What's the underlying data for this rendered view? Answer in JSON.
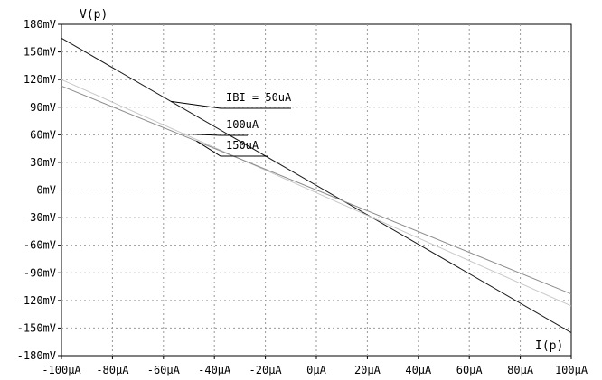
{
  "chart_data": {
    "type": "line",
    "ylabel": "V(p)",
    "xlabel": "I(p)",
    "xlim": [
      -100,
      100
    ],
    "ylim": [
      -180,
      180
    ],
    "x_unit": "µA",
    "y_unit": "mV",
    "xticks": [
      "-100µA",
      "-80µA",
      "-60µA",
      "-40µA",
      "-20µA",
      "0µA",
      "20µA",
      "40µA",
      "60µA",
      "80µA",
      "100µA"
    ],
    "yticks": [
      "180mV",
      "150mV",
      "120mV",
      "90mV",
      "60mV",
      "30mV",
      "0mV",
      "-30mV",
      "-60mV",
      "-90mV",
      "-120mV",
      "-150mV",
      "-180mV"
    ],
    "grid": true,
    "series": [
      {
        "name": "IBI = 50uA",
        "color": "#1a1a1a",
        "x": [
          -100,
          100
        ],
        "y": [
          165,
          -155
        ]
      },
      {
        "name": "100uA",
        "color": "#c8c8c8",
        "x": [
          -100,
          100
        ],
        "y": [
          120,
          -126
        ]
      },
      {
        "name": "150uA",
        "color": "#8c8c8c",
        "x": [
          -100,
          100
        ],
        "y": [
          113,
          -113
        ]
      }
    ],
    "annotations": [
      {
        "text": "IBI = 50uA",
        "series": 0,
        "at_x": -57
      },
      {
        "text": "100uA",
        "series": 1,
        "at_x": -52
      },
      {
        "text": "150uA",
        "series": 2,
        "at_x": -47
      }
    ]
  }
}
